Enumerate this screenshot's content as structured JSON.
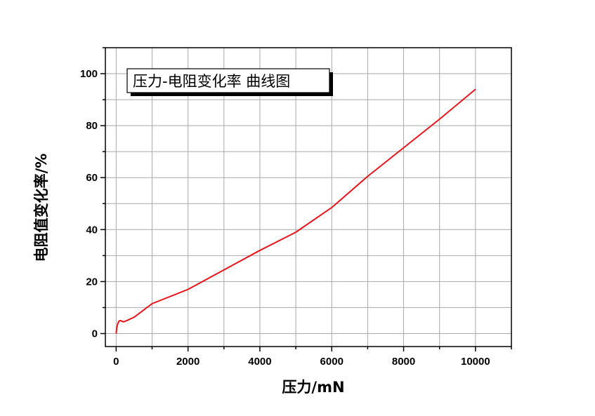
{
  "chart_data": {
    "type": "line",
    "title": "压力-电阻变化率 曲线图",
    "xlabel": "压力/mN",
    "ylabel": "电阻值变化率/%",
    "xlim": [
      -300,
      11000
    ],
    "ylim": [
      -5,
      110
    ],
    "xticks": [
      0,
      2000,
      4000,
      6000,
      8000,
      10000
    ],
    "yticks": [
      0,
      20,
      40,
      60,
      80,
      100
    ],
    "xtick_labels": [
      "0",
      "2000",
      "4000",
      "6000",
      "8000",
      "10000"
    ],
    "ytick_labels": [
      "0",
      "20",
      "40",
      "60",
      "80",
      "100"
    ],
    "grid": true,
    "legend_position": "top-left",
    "series": [
      {
        "color": "#e8141c",
        "x": [
          0,
          20,
          50,
          80,
          120,
          200,
          300,
          500,
          1000,
          2000,
          3000,
          4000,
          5000,
          6000,
          7000,
          8000,
          9000,
          10000
        ],
        "y": [
          0,
          2.5,
          4,
          4.8,
          5,
          4.5,
          5,
          6.3,
          11.5,
          17,
          24.5,
          32,
          39,
          48.5,
          60.5,
          71.5,
          82.5,
          94
        ]
      }
    ]
  }
}
